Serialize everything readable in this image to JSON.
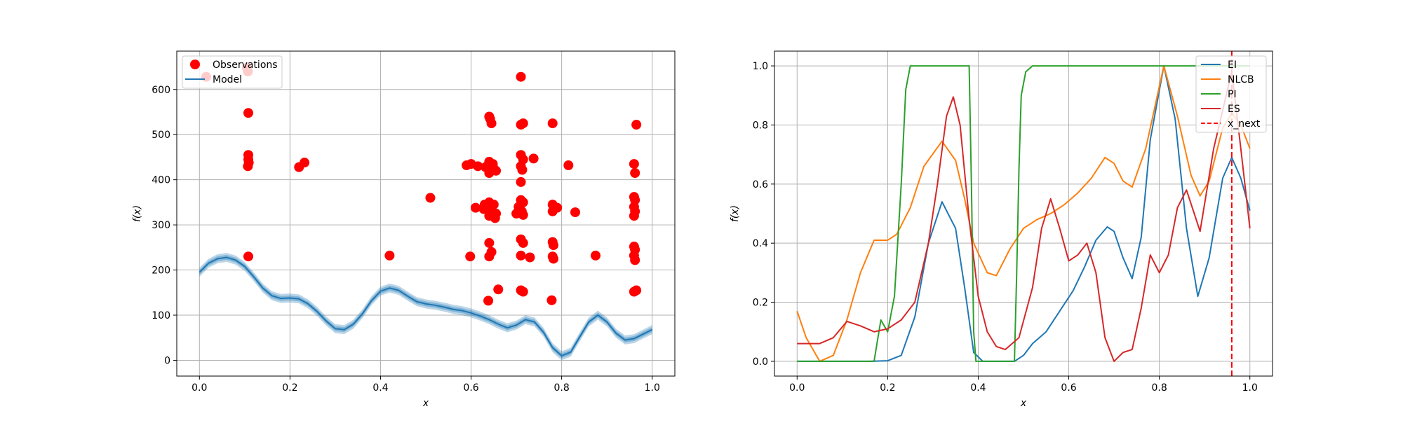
{
  "colors": {
    "observations": "#ff0000",
    "model": "#1f77b4",
    "EI": "#1f77b4",
    "NLCB": "#ff7f0e",
    "PI": "#2ca02c",
    "ES": "#d62728",
    "x_next": "#ff0000",
    "grid": "#b0b0b0"
  },
  "chart_data": [
    {
      "type": "scatter",
      "title": "",
      "xlabel": "x",
      "ylabel": "f(x)",
      "xlim": [
        -0.05,
        1.05
      ],
      "ylim": [
        -35,
        685
      ],
      "xticks": [
        0.0,
        0.2,
        0.4,
        0.6,
        0.8,
        1.0
      ],
      "xtick_labels": [
        "0.0",
        "0.2",
        "0.4",
        "0.6",
        "0.8",
        "1.0"
      ],
      "yticks": [
        0,
        100,
        200,
        300,
        400,
        500,
        600
      ],
      "ytick_labels": [
        "0",
        "100",
        "200",
        "300",
        "400",
        "500",
        "600"
      ],
      "grid": true,
      "legend_position": "top-left",
      "legend": [
        "Observations",
        "Model"
      ],
      "series": [
        {
          "name": "Observations",
          "kind": "scatter",
          "points": [
            [
              0.015,
              628
            ],
            [
              0.105,
              648
            ],
            [
              0.107,
              640
            ],
            [
              0.108,
              548
            ],
            [
              0.108,
              455
            ],
            [
              0.108,
              445
            ],
            [
              0.109,
              438
            ],
            [
              0.107,
              430
            ],
            [
              0.108,
              230
            ],
            [
              0.22,
              428
            ],
            [
              0.232,
              438
            ],
            [
              0.42,
              232
            ],
            [
              0.51,
              360
            ],
            [
              0.59,
              432
            ],
            [
              0.6,
              435
            ],
            [
              0.598,
              230
            ],
            [
              0.61,
              338
            ],
            [
              0.615,
              430
            ],
            [
              0.628,
              335
            ],
            [
              0.63,
              345
            ],
            [
              0.632,
              428
            ],
            [
              0.64,
              540
            ],
            [
              0.642,
              535
            ],
            [
              0.645,
              525
            ],
            [
              0.64,
              440
            ],
            [
              0.648,
              435
            ],
            [
              0.65,
              425
            ],
            [
              0.64,
              415
            ],
            [
              0.655,
              420
            ],
            [
              0.64,
              350
            ],
            [
              0.65,
              345
            ],
            [
              0.645,
              330
            ],
            [
              0.64,
              320
            ],
            [
              0.655,
              325
            ],
            [
              0.653,
              315
            ],
            [
              0.64,
              260
            ],
            [
              0.645,
              240
            ],
            [
              0.64,
              230
            ],
            [
              0.638,
              132
            ],
            [
              0.66,
              157
            ],
            [
              0.7,
              325
            ],
            [
              0.705,
              340
            ],
            [
              0.71,
              628
            ],
            [
              0.71,
              522
            ],
            [
              0.715,
              525
            ],
            [
              0.71,
              455
            ],
            [
              0.715,
              445
            ],
            [
              0.71,
              430
            ],
            [
              0.713,
              422
            ],
            [
              0.71,
              395
            ],
            [
              0.71,
              355
            ],
            [
              0.715,
              350
            ],
            [
              0.712,
              330
            ],
            [
              0.715,
              322
            ],
            [
              0.71,
              268
            ],
            [
              0.715,
              260
            ],
            [
              0.71,
              232
            ],
            [
              0.71,
              155
            ],
            [
              0.715,
              152
            ],
            [
              0.73,
              228
            ],
            [
              0.738,
              447
            ],
            [
              0.78,
              525
            ],
            [
              0.78,
              345
            ],
            [
              0.785,
              338
            ],
            [
              0.78,
              330
            ],
            [
              0.79,
              338
            ],
            [
              0.78,
              262
            ],
            [
              0.782,
              255
            ],
            [
              0.78,
              230
            ],
            [
              0.782,
              225
            ],
            [
              0.778,
              133
            ],
            [
              0.815,
              432
            ],
            [
              0.83,
              328
            ],
            [
              0.875,
              232
            ],
            [
              0.96,
              435
            ],
            [
              0.962,
              415
            ],
            [
              0.96,
              362
            ],
            [
              0.962,
              355
            ],
            [
              0.96,
              340
            ],
            [
              0.962,
              330
            ],
            [
              0.96,
              320
            ],
            [
              0.96,
              252
            ],
            [
              0.962,
              245
            ],
            [
              0.96,
              232
            ],
            [
              0.962,
              222
            ],
            [
              0.96,
              152
            ],
            [
              0.965,
              155
            ],
            [
              0.965,
              522
            ]
          ]
        },
        {
          "name": "Model",
          "kind": "line_with_band",
          "band_halfwidth": 10,
          "x": [
            0.0,
            0.02,
            0.04,
            0.06,
            0.08,
            0.1,
            0.12,
            0.14,
            0.16,
            0.18,
            0.2,
            0.22,
            0.24,
            0.26,
            0.28,
            0.3,
            0.32,
            0.34,
            0.36,
            0.38,
            0.4,
            0.42,
            0.44,
            0.46,
            0.48,
            0.5,
            0.52,
            0.54,
            0.56,
            0.58,
            0.6,
            0.62,
            0.64,
            0.66,
            0.68,
            0.7,
            0.72,
            0.74,
            0.76,
            0.78,
            0.8,
            0.82,
            0.84,
            0.86,
            0.88,
            0.9,
            0.92,
            0.94,
            0.96,
            0.98,
            1.0
          ],
          "y": [
            195,
            215,
            225,
            228,
            222,
            208,
            185,
            160,
            143,
            137,
            138,
            136,
            125,
            108,
            87,
            70,
            68,
            80,
            103,
            132,
            153,
            160,
            155,
            142,
            130,
            125,
            122,
            118,
            113,
            110,
            105,
            98,
            90,
            80,
            72,
            78,
            90,
            85,
            62,
            28,
            10,
            18,
            52,
            85,
            100,
            85,
            60,
            45,
            48,
            58,
            68
          ]
        }
      ]
    },
    {
      "type": "line",
      "title": "",
      "xlabel": "x",
      "ylabel": "f(x)",
      "xlim": [
        -0.05,
        1.05
      ],
      "ylim": [
        -0.05,
        1.05
      ],
      "xticks": [
        0.0,
        0.2,
        0.4,
        0.6,
        0.8,
        1.0
      ],
      "xtick_labels": [
        "0.0",
        "0.2",
        "0.4",
        "0.6",
        "0.8",
        "1.0"
      ],
      "yticks": [
        0.0,
        0.2,
        0.4,
        0.6,
        0.8,
        1.0
      ],
      "ytick_labels": [
        "0.0",
        "0.2",
        "0.4",
        "0.6",
        "0.8",
        "1.0"
      ],
      "grid": true,
      "legend_position": "top-right",
      "legend": [
        "EI",
        "NLCB",
        "PI",
        "ES",
        "x_next"
      ],
      "x_next": 0.96,
      "series": [
        {
          "name": "EI",
          "points": [
            [
              0,
              0
            ],
            [
              0.16,
              0
            ],
            [
              0.2,
              0.002
            ],
            [
              0.23,
              0.02
            ],
            [
              0.26,
              0.15
            ],
            [
              0.29,
              0.4
            ],
            [
              0.32,
              0.54
            ],
            [
              0.35,
              0.45
            ],
            [
              0.37,
              0.25
            ],
            [
              0.39,
              0.03
            ],
            [
              0.41,
              0
            ],
            [
              0.48,
              0
            ],
            [
              0.5,
              0.02
            ],
            [
              0.52,
              0.06
            ],
            [
              0.55,
              0.1
            ],
            [
              0.58,
              0.17
            ],
            [
              0.61,
              0.24
            ],
            [
              0.635,
              0.32
            ],
            [
              0.66,
              0.41
            ],
            [
              0.685,
              0.455
            ],
            [
              0.7,
              0.44
            ],
            [
              0.72,
              0.35
            ],
            [
              0.74,
              0.28
            ],
            [
              0.76,
              0.42
            ],
            [
              0.78,
              0.75
            ],
            [
              0.81,
              1.0
            ],
            [
              0.835,
              0.82
            ],
            [
              0.86,
              0.45
            ],
            [
              0.885,
              0.22
            ],
            [
              0.91,
              0.35
            ],
            [
              0.94,
              0.62
            ],
            [
              0.96,
              0.69
            ],
            [
              0.98,
              0.62
            ],
            [
              1.0,
              0.51
            ]
          ]
        },
        {
          "name": "NLCB",
          "points": [
            [
              0,
              0.17
            ],
            [
              0.02,
              0.08
            ],
            [
              0.05,
              0.0
            ],
            [
              0.08,
              0.02
            ],
            [
              0.11,
              0.14
            ],
            [
              0.14,
              0.3
            ],
            [
              0.17,
              0.41
            ],
            [
              0.2,
              0.41
            ],
            [
              0.22,
              0.43
            ],
            [
              0.25,
              0.52
            ],
            [
              0.28,
              0.66
            ],
            [
              0.32,
              0.745
            ],
            [
              0.35,
              0.68
            ],
            [
              0.37,
              0.55
            ],
            [
              0.39,
              0.4
            ],
            [
              0.42,
              0.3
            ],
            [
              0.44,
              0.29
            ],
            [
              0.47,
              0.38
            ],
            [
              0.5,
              0.45
            ],
            [
              0.53,
              0.48
            ],
            [
              0.56,
              0.5
            ],
            [
              0.59,
              0.53
            ],
            [
              0.62,
              0.57
            ],
            [
              0.65,
              0.62
            ],
            [
              0.68,
              0.69
            ],
            [
              0.7,
              0.67
            ],
            [
              0.72,
              0.61
            ],
            [
              0.74,
              0.59
            ],
            [
              0.77,
              0.72
            ],
            [
              0.81,
              1.0
            ],
            [
              0.84,
              0.83
            ],
            [
              0.87,
              0.63
            ],
            [
              0.89,
              0.56
            ],
            [
              0.91,
              0.61
            ],
            [
              0.94,
              0.79
            ],
            [
              0.96,
              0.84
            ],
            [
              0.98,
              0.8
            ],
            [
              1.0,
              0.72
            ]
          ]
        },
        {
          "name": "PI",
          "points": [
            [
              0,
              0
            ],
            [
              0.17,
              0
            ],
            [
              0.185,
              0.14
            ],
            [
              0.2,
              0.1
            ],
            [
              0.215,
              0.22
            ],
            [
              0.23,
              0.6
            ],
            [
              0.24,
              0.92
            ],
            [
              0.25,
              1.0
            ],
            [
              0.38,
              1.0
            ],
            [
              0.385,
              0.6
            ],
            [
              0.39,
              0.1
            ],
            [
              0.395,
              0
            ],
            [
              0.48,
              0
            ],
            [
              0.485,
              0.3
            ],
            [
              0.49,
              0.65
            ],
            [
              0.495,
              0.9
            ],
            [
              0.505,
              0.98
            ],
            [
              0.52,
              1.0
            ],
            [
              1.0,
              1.0
            ]
          ]
        },
        {
          "name": "ES",
          "points": [
            [
              0,
              0.06
            ],
            [
              0.05,
              0.06
            ],
            [
              0.08,
              0.08
            ],
            [
              0.11,
              0.135
            ],
            [
              0.14,
              0.12
            ],
            [
              0.17,
              0.1
            ],
            [
              0.2,
              0.11
            ],
            [
              0.23,
              0.14
            ],
            [
              0.26,
              0.2
            ],
            [
              0.29,
              0.4
            ],
            [
              0.31,
              0.6
            ],
            [
              0.33,
              0.83
            ],
            [
              0.345,
              0.895
            ],
            [
              0.36,
              0.8
            ],
            [
              0.38,
              0.48
            ],
            [
              0.4,
              0.22
            ],
            [
              0.42,
              0.1
            ],
            [
              0.44,
              0.05
            ],
            [
              0.46,
              0.04
            ],
            [
              0.49,
              0.08
            ],
            [
              0.52,
              0.25
            ],
            [
              0.54,
              0.45
            ],
            [
              0.56,
              0.55
            ],
            [
              0.58,
              0.45
            ],
            [
              0.6,
              0.34
            ],
            [
              0.62,
              0.36
            ],
            [
              0.64,
              0.4
            ],
            [
              0.66,
              0.3
            ],
            [
              0.68,
              0.08
            ],
            [
              0.7,
              0.0
            ],
            [
              0.72,
              0.03
            ],
            [
              0.74,
              0.04
            ],
            [
              0.76,
              0.18
            ],
            [
              0.78,
              0.36
            ],
            [
              0.8,
              0.3
            ],
            [
              0.82,
              0.36
            ],
            [
              0.84,
              0.52
            ],
            [
              0.86,
              0.58
            ],
            [
              0.89,
              0.44
            ],
            [
              0.92,
              0.72
            ],
            [
              0.94,
              0.85
            ],
            [
              0.96,
              0.98
            ],
            [
              0.98,
              0.72
            ],
            [
              1.0,
              0.45
            ]
          ]
        }
      ]
    }
  ]
}
